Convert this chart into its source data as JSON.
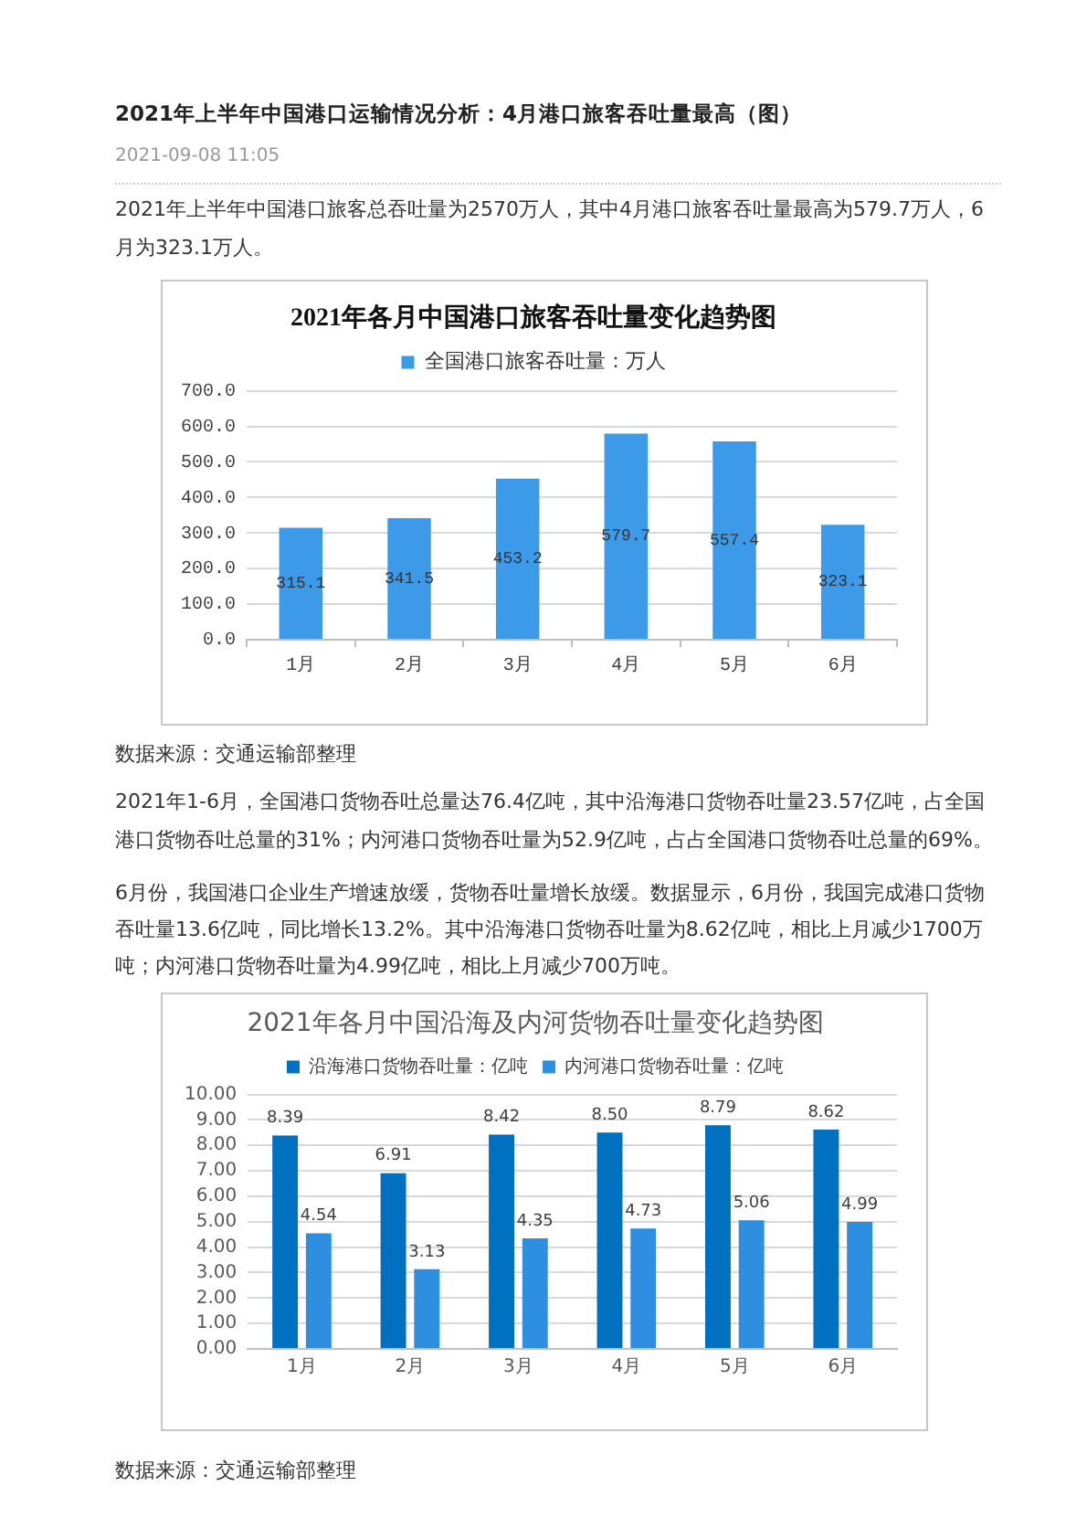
{
  "chart_data": [
    {
      "type": "bar",
      "title": "2021年各月中国港口旅客吞吐量变化趋势图",
      "categories": [
        "1月",
        "2月",
        "3月",
        "4月",
        "5月",
        "6月"
      ],
      "series": [
        {
          "name": "全国港口旅客吞吐量：万人",
          "color": "#3d9ae8",
          "values": [
            315.1,
            341.5,
            453.2,
            579.7,
            557.4,
            323.1
          ]
        }
      ],
      "ylim": [
        0,
        700
      ],
      "yticks": [
        {
          "value": 0,
          "label": "0.0"
        },
        {
          "value": 100,
          "label": "100.0"
        },
        {
          "value": 200,
          "label": "200.0"
        },
        {
          "value": 300,
          "label": "300.0"
        },
        {
          "value": 400,
          "label": "400.0"
        },
        {
          "value": 500,
          "label": "500.0"
        },
        {
          "value": 600,
          "label": "600.0"
        },
        {
          "value": 700,
          "label": "700.0"
        }
      ],
      "grid": "y",
      "legend": "top",
      "data_labels": true,
      "annotations": [
        "2021年上半年中国港口运输情况分析：4月港口旅客吞吐量最高（图）",
        "2021-09-08 11:05",
        "2021年上半年中国港口旅客总吞吐量为2570万人，其中4月港口旅客吞吐量最高为579.7万人，6月为323.1万人。",
        "数据来源：交通运输部整理"
      ]
    },
    {
      "type": "bar",
      "title": "2021年各月中国沿海及内河货物吞吐量变化趋势图",
      "categories": [
        "1月",
        "2月",
        "3月",
        "4月",
        "5月",
        "6月"
      ],
      "series": [
        {
          "name": "沿海港口货物吞吐量：亿吨",
          "color": "#0070c0",
          "values": [
            8.39,
            6.91,
            8.42,
            8.5,
            8.79,
            8.62
          ],
          "value_labels": [
            "8.39",
            "6.91",
            "8.42",
            "8.50",
            "8.79",
            "8.62"
          ]
        },
        {
          "name": "内河港口货物吞吐量：亿吨",
          "color": "#2e8fe0",
          "values": [
            4.54,
            3.13,
            4.35,
            4.73,
            5.06,
            4.99
          ],
          "value_labels": [
            "4.54",
            "3.13",
            "4.35",
            "4.73",
            "5.06",
            "4.99"
          ]
        }
      ],
      "ylim": [
        0,
        10
      ],
      "yticks": [
        {
          "value": 0,
          "label": "0.00"
        },
        {
          "value": 1,
          "label": "1.00"
        },
        {
          "value": 2,
          "label": "2.00"
        },
        {
          "value": 3,
          "label": "3.00"
        },
        {
          "value": 4,
          "label": "4.00"
        },
        {
          "value": 5,
          "label": "5.00"
        },
        {
          "value": 6,
          "label": "6.00"
        },
        {
          "value": 7,
          "label": "7.00"
        },
        {
          "value": 8,
          "label": "8.00"
        },
        {
          "value": 9,
          "label": "9.00"
        },
        {
          "value": 10,
          "label": "10.00"
        }
      ],
      "grid": "y",
      "legend": "top",
      "annotations": [
        "2021年1-6月，全国港口货物吞吐总量达76.4亿吨，其中沿海港口货物吞吐量23.57亿吨，占全国港口货物吞吐总量的31%；内河港口货物吞吐量为52.9亿吨，占占全国港口货物吞吐总量的69%。",
        "6月份，我国港口企业生产增速放缓，货物吞吐量增长放缓。数据显示，6月份，我国完成港口货物吞吐量13.6亿吨，同比增长13.2%。其中沿海港口货物吞吐量为8.62亿吨，相比上月减少1700万吨；内河港口货物吞吐量为4.99亿吨，相比上月减少700万吨。",
        "数据来源：交通运输部整理"
      ]
    }
  ]
}
